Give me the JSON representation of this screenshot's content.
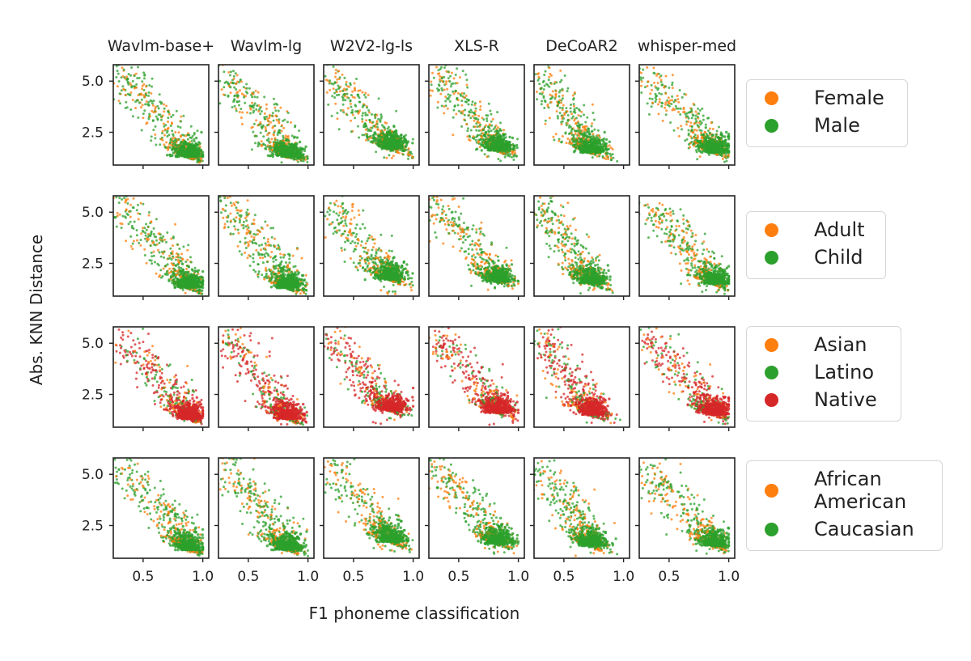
{
  "figure": {
    "xlabel": "F1 phoneme classification",
    "ylabel": "Abs. KNN Distance"
  },
  "chart_data": {
    "type": "scatter",
    "columns": [
      "Wavlm-base+",
      "Wavlm-lg",
      "W2V2-lg-ls",
      "XLS-R",
      "DeCoAR2",
      "whisper-med"
    ],
    "xlim": [
      0.25,
      1.05
    ],
    "ylim": [
      0.9,
      5.8
    ],
    "xticks": [
      0.5,
      1.0
    ],
    "xtick_labels": [
      "0.5",
      "1.0"
    ],
    "yticks": [
      2.5,
      5.0
    ],
    "ytick_labels": [
      "2.5",
      "5.0"
    ],
    "rows": [
      {
        "legend": [
          {
            "label": "Female",
            "color": "#ff7f0e"
          },
          {
            "label": "Male",
            "color": "#2ca02c"
          }
        ],
        "dense_group": 1
      },
      {
        "legend": [
          {
            "label": "Adult",
            "color": "#ff7f0e"
          },
          {
            "label": "Child",
            "color": "#2ca02c"
          }
        ],
        "dense_group": 1
      },
      {
        "legend": [
          {
            "label": "Asian",
            "color": "#ff7f0e"
          },
          {
            "label": "Latino",
            "color": "#2ca02c"
          },
          {
            "label": "Native",
            "color": "#d62728"
          }
        ],
        "dense_group": 2
      },
      {
        "legend": [
          {
            "label": "African\nAmerican",
            "color": "#ff7f0e"
          },
          {
            "label": "Caucasian",
            "color": "#2ca02c"
          }
        ],
        "dense_group": 1
      }
    ],
    "cluster_centers": [
      {
        "model": "Wavlm-base+",
        "x": 0.85,
        "y": 1.6
      },
      {
        "model": "Wavlm-lg",
        "x": 0.8,
        "y": 1.6
      },
      {
        "model": "W2V2-lg-ls",
        "x": 0.78,
        "y": 2.0
      },
      {
        "model": "XLS-R",
        "x": 0.8,
        "y": 1.9
      },
      {
        "model": "DeCoAR2",
        "x": 0.7,
        "y": 1.8
      },
      {
        "model": "whisper-med",
        "x": 0.85,
        "y": 1.8
      }
    ],
    "grid": false,
    "legend_placement": "right of each row"
  }
}
